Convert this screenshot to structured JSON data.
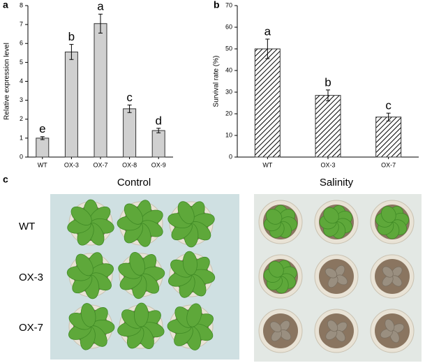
{
  "chart_data": [
    {
      "type": "bar",
      "panel_label": "a",
      "y_label": "Relative expression level",
      "categories": [
        "WT",
        "OX-3",
        "OX-7",
        "OX-8",
        "OX-9"
      ],
      "values": [
        1.0,
        5.55,
        7.05,
        2.55,
        1.4
      ],
      "errors": [
        0.08,
        0.4,
        0.5,
        0.2,
        0.12
      ],
      "annotations": [
        "e",
        "b",
        "a",
        "c",
        "d"
      ],
      "color": "#d0d0d0",
      "hatch": false,
      "ylim": [
        0,
        8
      ],
      "yticks": [
        0,
        1,
        2,
        3,
        4,
        5,
        6,
        7,
        8
      ]
    },
    {
      "type": "bar",
      "panel_label": "b",
      "y_label": "Survival rate (%)",
      "categories": [
        "WT",
        "OX-3",
        "OX-7"
      ],
      "values": [
        50,
        28.5,
        18.5
      ],
      "errors": [
        4.5,
        2.5,
        1.8
      ],
      "annotations": [
        "a",
        "b",
        "c"
      ],
      "color": "#ffffff",
      "hatch": true,
      "ylim": [
        0,
        70
      ],
      "yticks": [
        0,
        10,
        20,
        30,
        40,
        50,
        60,
        70
      ]
    }
  ],
  "photo_panel": {
    "label": "c",
    "columns": [
      "Control",
      "Salinity"
    ],
    "rows": [
      "WT",
      "OX-3",
      "OX-7"
    ]
  }
}
